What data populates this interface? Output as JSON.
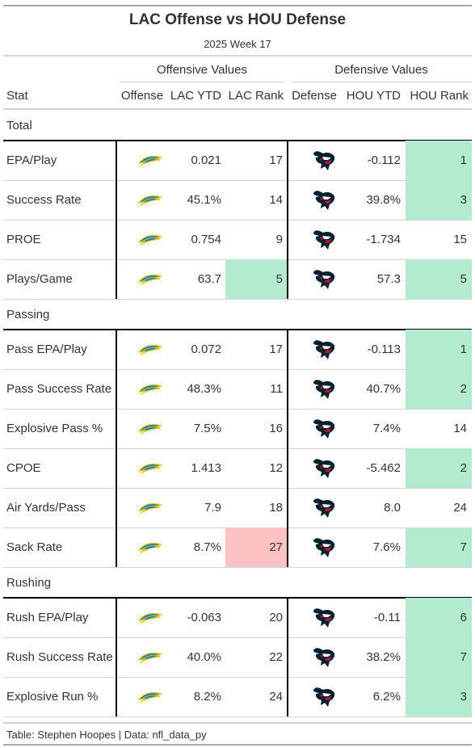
{
  "title": "LAC Offense vs HOU Defense",
  "subtitle": "2025 Week 17",
  "spanners": {
    "offense": "Offensive Values",
    "defense": "Defensive Values"
  },
  "columns": {
    "stat": "Stat",
    "offense": "Offense",
    "off_ytd": "LAC YTD",
    "off_rank": "LAC Rank",
    "defense": "Defense",
    "def_ytd": "HOU YTD",
    "def_rank": "HOU Rank"
  },
  "logos": {
    "offense": "chargers-bolt-logo",
    "defense": "texans-bull-logo"
  },
  "colors": {
    "good_rank": "#b3ebcf",
    "bad_rank": "#ffc2c2"
  },
  "groups": [
    {
      "name": "Total",
      "rows": [
        {
          "stat": "EPA/Play",
          "off_ytd": "0.021",
          "off_rank": "17",
          "off_rank_color": "",
          "def_ytd": "-0.112",
          "def_rank": "1",
          "def_rank_color": "good"
        },
        {
          "stat": "Success Rate",
          "off_ytd": "45.1%",
          "off_rank": "14",
          "off_rank_color": "",
          "def_ytd": "39.8%",
          "def_rank": "3",
          "def_rank_color": "good"
        },
        {
          "stat": "PROE",
          "off_ytd": "0.754",
          "off_rank": "9",
          "off_rank_color": "",
          "def_ytd": "-1.734",
          "def_rank": "15",
          "def_rank_color": ""
        },
        {
          "stat": "Plays/Game",
          "off_ytd": "63.7",
          "off_rank": "5",
          "off_rank_color": "good",
          "def_ytd": "57.3",
          "def_rank": "5",
          "def_rank_color": "good"
        }
      ]
    },
    {
      "name": "Passing",
      "rows": [
        {
          "stat": "Pass EPA/Play",
          "off_ytd": "0.072",
          "off_rank": "17",
          "off_rank_color": "",
          "def_ytd": "-0.113",
          "def_rank": "1",
          "def_rank_color": "good"
        },
        {
          "stat": "Pass Success Rate",
          "off_ytd": "48.3%",
          "off_rank": "11",
          "off_rank_color": "",
          "def_ytd": "40.7%",
          "def_rank": "2",
          "def_rank_color": "good"
        },
        {
          "stat": "Explosive Pass %",
          "off_ytd": "7.5%",
          "off_rank": "16",
          "off_rank_color": "",
          "def_ytd": "7.4%",
          "def_rank": "14",
          "def_rank_color": ""
        },
        {
          "stat": "CPOE",
          "off_ytd": "1.413",
          "off_rank": "12",
          "off_rank_color": "",
          "def_ytd": "-5.462",
          "def_rank": "2",
          "def_rank_color": "good"
        },
        {
          "stat": "Air Yards/Pass",
          "off_ytd": "7.9",
          "off_rank": "18",
          "off_rank_color": "",
          "def_ytd": "8.0",
          "def_rank": "24",
          "def_rank_color": ""
        },
        {
          "stat": "Sack Rate",
          "off_ytd": "8.7%",
          "off_rank": "27",
          "off_rank_color": "bad",
          "def_ytd": "7.6%",
          "def_rank": "7",
          "def_rank_color": "good"
        }
      ]
    },
    {
      "name": "Rushing",
      "rows": [
        {
          "stat": "Rush EPA/Play",
          "off_ytd": "-0.063",
          "off_rank": "20",
          "off_rank_color": "",
          "def_ytd": "-0.11",
          "def_rank": "6",
          "def_rank_color": "good"
        },
        {
          "stat": "Rush Success Rate",
          "off_ytd": "40.0%",
          "off_rank": "22",
          "off_rank_color": "",
          "def_ytd": "38.2%",
          "def_rank": "7",
          "def_rank_color": "good"
        },
        {
          "stat": "Explosive Run %",
          "off_ytd": "8.2%",
          "off_rank": "24",
          "off_rank_color": "",
          "def_ytd": "6.2%",
          "def_rank": "3",
          "def_rank_color": "good"
        }
      ]
    }
  ],
  "footer": "Table: Stephen Hoopes | Data: nfl_data_py"
}
